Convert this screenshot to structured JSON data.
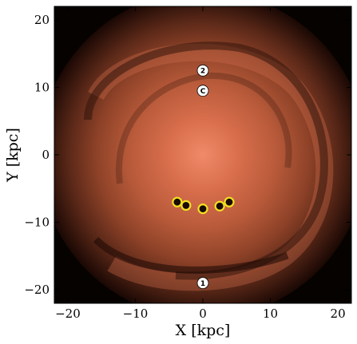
{
  "chart_data": {
    "type": "heatmap",
    "title": "",
    "xlabel": "X [kpc]",
    "ylabel": "Y [kpc]",
    "xlim": [
      -22,
      22
    ],
    "ylim": [
      -22,
      22
    ],
    "xticks": [
      -20,
      -10,
      0,
      10,
      20
    ],
    "yticks": [
      -20,
      -10,
      0,
      10,
      20
    ],
    "xtick_labels": [
      "−20",
      "−10",
      "0",
      "10",
      "20"
    ],
    "ytick_labels": [
      "−20",
      "−10",
      "0",
      "10",
      "20"
    ],
    "grid": false,
    "legend": "none",
    "colormap": [
      "#000000",
      "#2a1208",
      "#5a2a16",
      "#8a4026",
      "#c0603e",
      "#e07a58",
      "#f08868"
    ],
    "labeled_markers": [
      {
        "label": "2",
        "x": 0.0,
        "y": 12.5
      },
      {
        "label": "C",
        "x": 0.0,
        "y": 9.5
      },
      {
        "label": "1",
        "x": 0.0,
        "y": -19.0
      }
    ],
    "highlighted_points": {
      "color": "#f2e020",
      "points": [
        {
          "x": -3.8,
          "y": -7.0
        },
        {
          "x": -2.5,
          "y": -7.5
        },
        {
          "x": 0.0,
          "y": -8.0
        },
        {
          "x": 2.5,
          "y": -7.6
        },
        {
          "x": 3.9,
          "y": -7.0
        }
      ]
    }
  }
}
